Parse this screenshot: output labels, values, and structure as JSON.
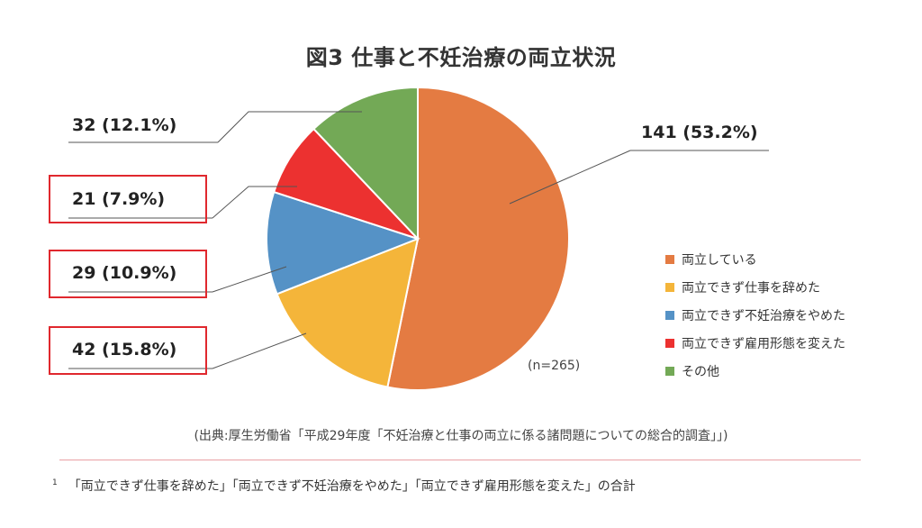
{
  "chart_data": {
    "type": "pie",
    "title": "図3 仕事と不妊治療の両立状況",
    "categories": [
      "両立している",
      "両立できず仕事を辞めた",
      "両立できず不妊治療をやめた",
      "両立できず雇用形態を変えた",
      "その他"
    ],
    "values": [
      141,
      42,
      29,
      21,
      32
    ],
    "value_labels": [
      "141 (53.2%)",
      "42 (15.8%)",
      "29 (10.9%)",
      "21 (7.9%)",
      "32 (12.1%)"
    ],
    "colors": [
      "#e47b42",
      "#f4b53a",
      "#5592c6",
      "#ec3130",
      "#73a956"
    ],
    "highlighted": [
      false,
      true,
      true,
      true,
      false
    ],
    "legend_position": "right",
    "sample_size": "(n=265)"
  },
  "source": "(出典:厚生労働省「平成29年度「不妊治療と仕事の両立に係る諸問題についての総合的調査」」)",
  "footnote": {
    "mark": "1",
    "text": "「両立できず仕事を辞めた」「両立できず不妊治療をやめた」「両立できず雇用形態を変えた」の合計"
  }
}
